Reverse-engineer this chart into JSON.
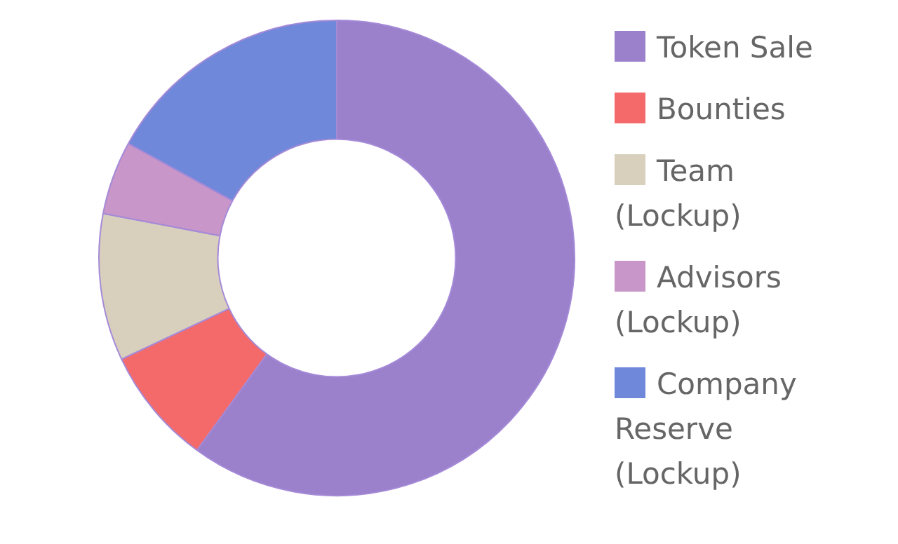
{
  "chart_data": {
    "type": "donut",
    "categories": [
      "Token Sale",
      "Bounties",
      "Team (Lockup)",
      "Advisors (Lockup)",
      "Company Reserve (Lockup)"
    ],
    "values": [
      60,
      8,
      10,
      5,
      17
    ],
    "colors": [
      "#9b80cc",
      "#f46a6a",
      "#d9cfbd",
      "#c896c8",
      "#6f88d9"
    ],
    "legend": "right"
  }
}
